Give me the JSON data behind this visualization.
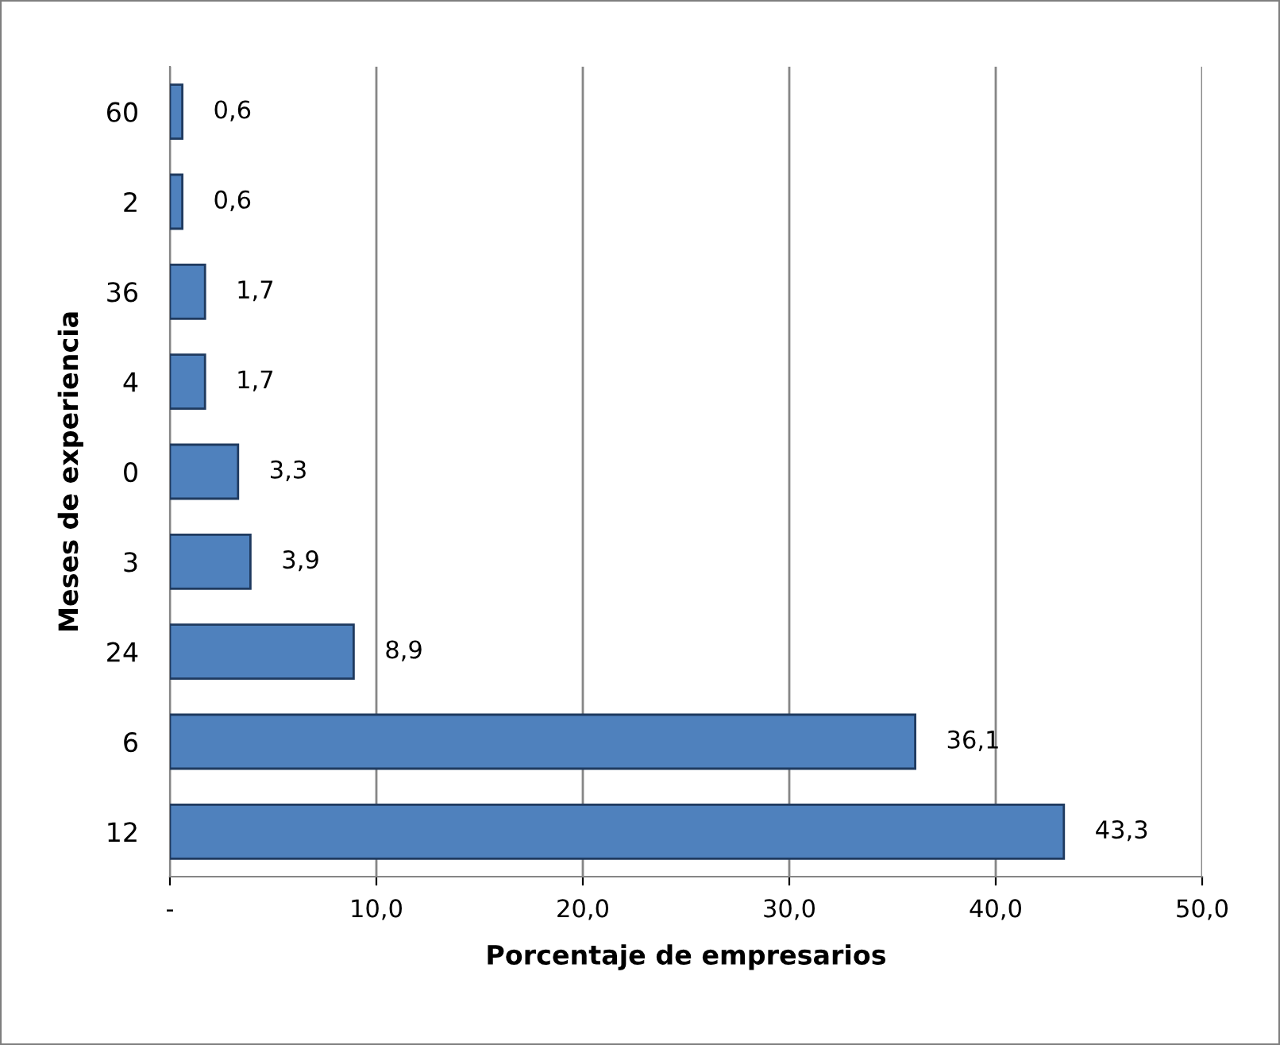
{
  "chart_data": {
    "type": "bar",
    "orientation": "horizontal",
    "xlabel": "Porcentaje de empresarios",
    "ylabel": "Meses de experiencia",
    "categories": [
      "60",
      "2",
      "36",
      "4",
      "0",
      "3",
      "24",
      "6",
      "12"
    ],
    "values": [
      0.6,
      0.6,
      1.7,
      1.7,
      3.3,
      3.9,
      8.9,
      36.1,
      43.3
    ],
    "value_labels": [
      "0,6",
      "0,6",
      "1,7",
      "1,7",
      "3,3",
      "3,9",
      "8,9",
      "36,1",
      "43,3"
    ],
    "color": "#4f81bd",
    "xlim": [
      0,
      50
    ],
    "xticks": [
      {
        "value": 0,
        "label": "-"
      },
      {
        "value": 10,
        "label": "10,0"
      },
      {
        "value": 20,
        "label": "20,0"
      },
      {
        "value": 30,
        "label": "30,0"
      },
      {
        "value": 40,
        "label": "40,0"
      },
      {
        "value": 50,
        "label": "50,0"
      }
    ],
    "grid": "x",
    "legend": false
  }
}
